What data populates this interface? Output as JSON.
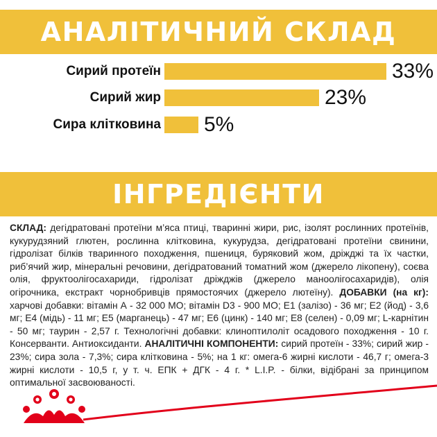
{
  "analysis": {
    "title": "АНАЛІТИЧНИЙ СКЛАД",
    "rows": [
      {
        "label": "Сирий протеїн",
        "value_text": "33%",
        "value": 33
      },
      {
        "label": "Сирий жир",
        "value_text": "23%",
        "value": 23
      },
      {
        "label": "Сира клітковина",
        "value_text": "5%",
        "value": 5
      }
    ]
  },
  "ingredients": {
    "title": "ІНГРЕДІЄНТИ",
    "composition_label": "СКЛАД:",
    "composition_text": " дегідратовані протеїни м’яса птиці, тваринні жири, рис, ізолят рослинних протеїнів, кукурудзяний глютен, рослинна клітковина, кукурудза, дегідратовані протеїни свинини, гідролізат білків тваринного походження, пшениця, буряковий жом, дріжджі та їх частки, риб’ячий жир, мінеральні речовини, дегідратований томатний жом (джерело лікопену), соєва олія, фруктоолігосахариди, гідролізат дріжджів (джерело маноолігосахаридів), олія огірочника, екстракт чорнобривців прямостоячих (джерело лютеїну). ",
    "additives_label": "ДОБАВКИ (на кг):",
    "additives_text": " харчові добавки: вітамін А - 32 000 МО; вітамін D3 - 900 МО; Е1 (залізо) - 36 мг; Е2 (йод) - 3,6 мг; Е4 (мідь) - 11 мг; Е5 (марганець) - 47 мг; Е6 (цинк) - 140 мг; Е8 (селен) - 0,09 мг; L-карнітин - 50 мг; таурин - 2,57 г. Технологічні добавки: клиноптилоліт осадового походження - 10 г. Консерванти. Антиоксиданти. ",
    "components_label": "АНАЛІТИЧНІ КОМПОНЕНТИ:",
    "components_text": " сирий протеїн - 33%; сирий жир - 23%; сира зола - 7,3%; сира клітковина - 5%; на 1 кг: омега-6 жирні кислоти - 46,7 г; омега-3 жирні кислоти - 10,5 г, у т. ч. ЕПК + ДГК - 4 г. * L.I.P. - білки, відібрані за принципом оптимальної засвоюваності."
  },
  "colors": {
    "accent": "#f0c03a",
    "brand_red": "#e2001a",
    "text": "#111111"
  },
  "logo": {
    "icon": "royal-canin-crown-logo"
  }
}
